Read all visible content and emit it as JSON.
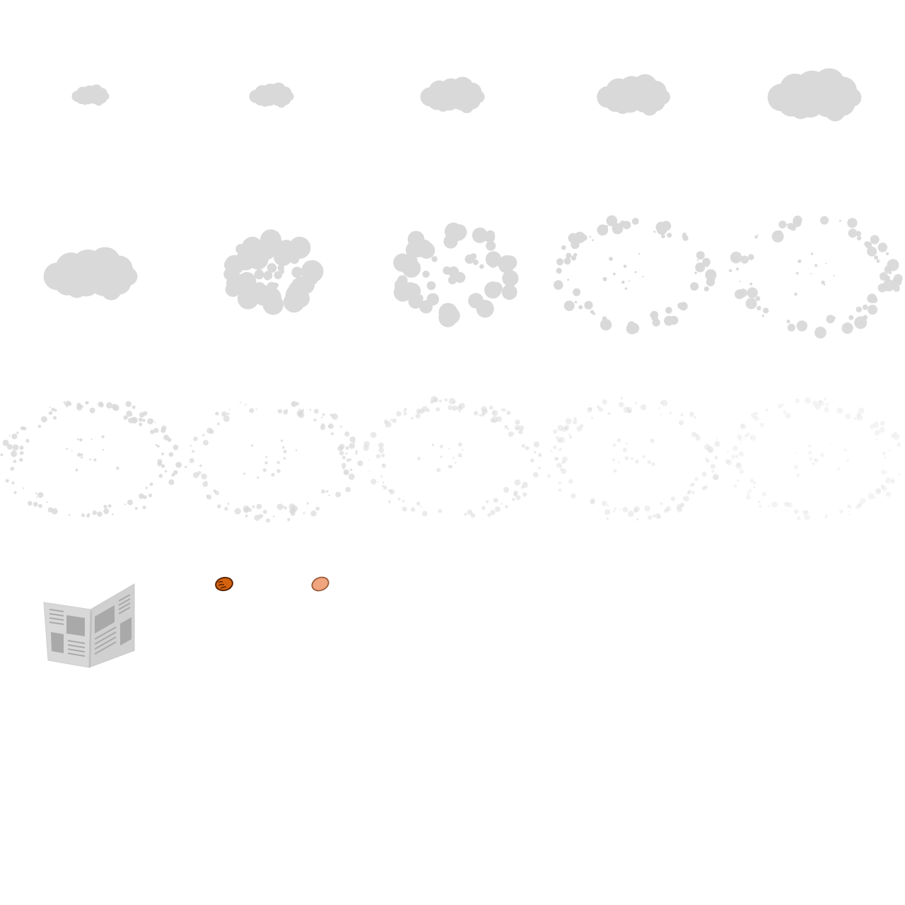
{
  "sprite_sheet": {
    "grid": {
      "columns": 5,
      "cell_rows": 3
    },
    "smoke_color": "#d9d9d9",
    "background": "#ffffff",
    "smoke_frames": [
      {
        "name": "smoke-frame-01",
        "stage": "puff",
        "scale": 0.42
      },
      {
        "name": "smoke-frame-02",
        "stage": "puff",
        "scale": 0.5
      },
      {
        "name": "smoke-frame-03",
        "stage": "puff",
        "scale": 0.72
      },
      {
        "name": "smoke-frame-04",
        "stage": "puff",
        "scale": 0.82
      },
      {
        "name": "smoke-frame-05",
        "stage": "puff",
        "scale": 1.05
      },
      {
        "name": "smoke-frame-06",
        "stage": "puff",
        "scale": 1.05
      },
      {
        "name": "smoke-frame-07",
        "stage": "burst",
        "spread": 0.55,
        "opacity": 1.0
      },
      {
        "name": "smoke-frame-08",
        "stage": "burst",
        "spread": 0.8,
        "opacity": 1.0
      },
      {
        "name": "smoke-frame-09",
        "stage": "scatter",
        "spread": 0.9,
        "opacity": 1.0
      },
      {
        "name": "smoke-frame-10",
        "stage": "scatter",
        "spread": 0.95,
        "opacity": 0.95
      },
      {
        "name": "smoke-frame-11",
        "stage": "dust",
        "spread": 1.0,
        "opacity": 0.85
      },
      {
        "name": "smoke-frame-12",
        "stage": "dust",
        "spread": 1.0,
        "opacity": 0.7
      },
      {
        "name": "smoke-frame-13",
        "stage": "dust",
        "spread": 1.0,
        "opacity": 0.55
      },
      {
        "name": "smoke-frame-14",
        "stage": "dust",
        "spread": 1.0,
        "opacity": 0.42
      },
      {
        "name": "smoke-frame-15",
        "stage": "dust",
        "spread": 1.0,
        "opacity": 0.3
      }
    ],
    "props": [
      {
        "name": "newspaper-icon",
        "colors": {
          "paper": "#d8d8d8",
          "paper_dark": "#c4c4c4",
          "print": "#a9a9a9"
        }
      },
      {
        "name": "coin-bronze-icon",
        "colors": {
          "fill": "#d4620e",
          "stroke": "#5a2400"
        }
      },
      {
        "name": "bean-icon",
        "colors": {
          "fill": "#f0a57e",
          "stroke": "#9a5a38"
        }
      }
    ]
  }
}
